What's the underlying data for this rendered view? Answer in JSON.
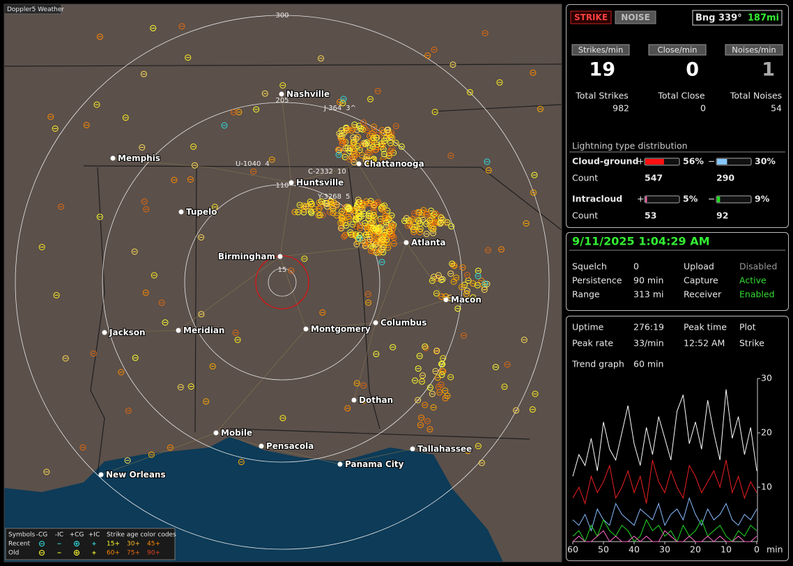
{
  "map": {
    "title": "Doppler5 Weather",
    "range_rings": [
      "300",
      "205",
      "110",
      "15"
    ],
    "cities": [
      "Nashville",
      "Memphis",
      "Chattanooga",
      "Huntsville",
      "Tupelo",
      "Atlanta",
      "Birmingham",
      "Macon",
      "Jackson",
      "Meridian",
      "Montgomery",
      "Columbus",
      "Dothan",
      "Mobile",
      "Pensacola",
      "Tallahassee",
      "Panama City",
      "New Orleans"
    ],
    "storms": [
      {
        "id": "J-364",
        "count": "3^"
      },
      {
        "id": "U-1040",
        "count": "4"
      },
      {
        "id": "C-2332",
        "count": "10"
      },
      {
        "id": "Y-3268",
        "count": "5"
      }
    ],
    "legend": {
      "symbols_title": "Symbols",
      "symbols": [
        "-CG",
        "-IC",
        "+CG",
        "+IC"
      ],
      "age_title": "Strike age color codes",
      "rows": [
        {
          "label": "Recent",
          "ages": [
            "15+",
            "30+",
            "45+"
          ]
        },
        {
          "label": "Old",
          "ages": [
            "60+",
            "75+",
            "90+"
          ]
        }
      ]
    }
  },
  "status": {
    "strike_button": "STRIKE",
    "noise_button": "NOISE",
    "bearing": "Bng 339°",
    "distance": "187mi"
  },
  "rates": [
    {
      "label": "Strikes/min",
      "value": "19"
    },
    {
      "label": "Close/min",
      "value": "0"
    },
    {
      "label": "Noises/min",
      "value": "1"
    }
  ],
  "totals": [
    {
      "label": "Total Strikes",
      "value": "982"
    },
    {
      "label": "Total Close",
      "value": "0"
    },
    {
      "label": "Total Noises",
      "value": "54"
    }
  ],
  "distribution": {
    "title": "Lightning type distribution",
    "rows": [
      {
        "label": "Cloud-ground",
        "plus_sign": "+",
        "minus_sign": "−",
        "plus": {
          "value": 56,
          "label": "56%"
        },
        "minus": {
          "value": 30,
          "label": "30%"
        },
        "plus_color": "#ff1010",
        "minus_color": "#88c8ff",
        "count_label": "Count",
        "plus_count": "547",
        "minus_count": "290"
      },
      {
        "label": "Intracloud",
        "plus_sign": "+",
        "minus_sign": "−",
        "plus": {
          "value": 5,
          "label": "5%"
        },
        "minus": {
          "value": 9,
          "label": "9%"
        },
        "plus_color": "#ff66aa",
        "minus_color": "#22dd22",
        "count_label": "Count",
        "plus_count": "53",
        "minus_count": "92"
      }
    ]
  },
  "clock": {
    "datetime": "9/11/2025 1:04:29 AM",
    "rows": [
      {
        "cells": [
          "Squelch",
          "0",
          "Upload",
          "Disabled"
        ],
        "status_color": "#9a9a9a"
      },
      {
        "cells": [
          "Persistence",
          "90 min",
          "Capture",
          "Active"
        ],
        "status_color": "#33dd33"
      },
      {
        "cells": [
          "Range",
          "313 mi",
          "Receiver",
          "Enabled"
        ],
        "status_color": "#33dd33"
      }
    ]
  },
  "stats": {
    "rows": [
      [
        "Uptime",
        "276:19",
        "Peak time",
        "Plot"
      ],
      [
        "Peak rate",
        "33/min",
        "12:52 AM",
        "Strike"
      ]
    ],
    "trend_label": "Trend graph",
    "trend_window": "60 min"
  },
  "chart_data": {
    "type": "line",
    "x": [
      60,
      58,
      56,
      54,
      52,
      50,
      48,
      46,
      44,
      42,
      40,
      38,
      36,
      34,
      32,
      30,
      28,
      26,
      24,
      22,
      20,
      18,
      16,
      14,
      12,
      10,
      8,
      6,
      4,
      2,
      0
    ],
    "xlim": [
      60,
      0
    ],
    "xticks": [
      60,
      50,
      40,
      30,
      20,
      10,
      0
    ],
    "x_unit": "min",
    "ylim": [
      0,
      30
    ],
    "yticks": [
      10,
      20,
      30
    ],
    "series": [
      {
        "color": "#ffffff",
        "values": [
          12,
          16,
          14,
          19,
          13,
          22,
          17,
          15,
          20,
          25,
          18,
          14,
          21,
          16,
          23,
          19,
          15,
          24,
          27,
          18,
          22,
          17,
          26,
          20,
          15,
          28,
          19,
          23,
          16,
          21,
          13
        ]
      },
      {
        "color": "#ee2020",
        "values": [
          8,
          10,
          7,
          12,
          9,
          11,
          14,
          8,
          10,
          13,
          9,
          12,
          7,
          15,
          11,
          9,
          13,
          10,
          8,
          14,
          12,
          9,
          11,
          13,
          10,
          15,
          9,
          12,
          8,
          11,
          9
        ]
      },
      {
        "color": "#88bbff",
        "values": [
          4,
          3,
          5,
          2,
          6,
          4,
          3,
          7,
          5,
          4,
          3,
          6,
          5,
          4,
          7,
          3,
          5,
          6,
          4,
          8,
          5,
          3,
          6,
          4,
          5,
          7,
          4,
          3,
          5,
          4,
          6
        ]
      },
      {
        "color": "#22dd22",
        "values": [
          1,
          2,
          0,
          3,
          1,
          4,
          2,
          1,
          3,
          2,
          0,
          1,
          4,
          2,
          3,
          1,
          2,
          0,
          3,
          1,
          2,
          4,
          1,
          2,
          3,
          1,
          0,
          2,
          1,
          3,
          2
        ]
      },
      {
        "color": "#ff66cc",
        "values": [
          0,
          1,
          0,
          0,
          1,
          2,
          0,
          1,
          0,
          0,
          1,
          0,
          1,
          0,
          0,
          2,
          1,
          0,
          0,
          1,
          0,
          0,
          1,
          0,
          1,
          0,
          0,
          1,
          0,
          0,
          1
        ]
      }
    ]
  }
}
